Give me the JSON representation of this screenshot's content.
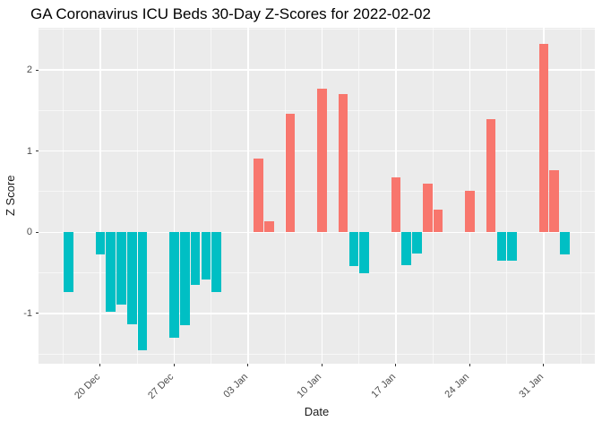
{
  "title": "GA Coronavirus ICU Beds 30-Day Z-Scores for 2022-02-02",
  "chart_data": {
    "type": "bar",
    "title": "GA Coronavirus ICU Beds 30-Day Z-Scores for 2022-02-02",
    "xlabel": "Date",
    "ylabel": "Z Score",
    "legend": "none",
    "grid": "major-and-minor",
    "panel_bg": "#EBEBEB",
    "grid_major_color": "#FFFFFF",
    "grid_minor_color": "rgba(255,255,255,0.6)",
    "tick_text_color": "#4d4d4d",
    "colors": {
      "positive": "#F8766D",
      "negative": "#00BFC4"
    },
    "x_range_days": [
      -2.85,
      49.84
    ],
    "y_range": [
      -1.62,
      2.52
    ],
    "bar_width_days": 0.9,
    "x_ticks": [
      {
        "label": "20 Dec",
        "day": 3
      },
      {
        "label": "27 Dec",
        "day": 10
      },
      {
        "label": "03 Jan",
        "day": 17
      },
      {
        "label": "10 Jan",
        "day": 24
      },
      {
        "label": "17 Jan",
        "day": 31
      },
      {
        "label": "24 Jan",
        "day": 38
      },
      {
        "label": "31 Jan",
        "day": 45
      }
    ],
    "x_minor_ticks_days": [
      -0.5,
      6.5,
      13.5,
      20.5,
      27.5,
      34.5,
      41.5,
      48.5
    ],
    "y_ticks": [
      {
        "label": "2",
        "z": 2
      },
      {
        "label": "1",
        "z": 1
      },
      {
        "label": "0",
        "z": 0
      },
      {
        "label": "-1",
        "z": -1
      }
    ],
    "y_minor_ticks": [
      2.5,
      1.5,
      0.5,
      -0.5,
      -1.5
    ],
    "points": [
      {
        "date": "17 Dec",
        "day": 0,
        "z": -0.74
      },
      {
        "date": "20 Dec",
        "day": 3,
        "z": -0.27
      },
      {
        "date": "21 Dec",
        "day": 4,
        "z": -0.98
      },
      {
        "date": "22 Dec",
        "day": 5,
        "z": -0.89
      },
      {
        "date": "23 Dec",
        "day": 6,
        "z": -1.13
      },
      {
        "date": "24 Dec",
        "day": 7,
        "z": -1.46
      },
      {
        "date": "27 Dec",
        "day": 10,
        "z": -1.3
      },
      {
        "date": "28 Dec",
        "day": 11,
        "z": -1.14
      },
      {
        "date": "29 Dec",
        "day": 12,
        "z": -0.65
      },
      {
        "date": "30 Dec",
        "day": 13,
        "z": -0.58
      },
      {
        "date": "31 Dec",
        "day": 14,
        "z": -0.74
      },
      {
        "date": "04 Jan",
        "day": 18,
        "z": 0.91
      },
      {
        "date": "05 Jan",
        "day": 19,
        "z": 0.13
      },
      {
        "date": "07 Jan",
        "day": 21,
        "z": 1.46
      },
      {
        "date": "10 Jan",
        "day": 24,
        "z": 1.77
      },
      {
        "date": "12 Jan",
        "day": 26,
        "z": 1.7
      },
      {
        "date": "13 Jan",
        "day": 27,
        "z": -0.42
      },
      {
        "date": "14 Jan",
        "day": 28,
        "z": -0.5
      },
      {
        "date": "17 Jan",
        "day": 31,
        "z": 0.68
      },
      {
        "date": "18 Jan",
        "day": 32,
        "z": -0.41
      },
      {
        "date": "19 Jan",
        "day": 33,
        "z": -0.26
      },
      {
        "date": "20 Jan",
        "day": 34,
        "z": 0.6
      },
      {
        "date": "21 Jan",
        "day": 35,
        "z": 0.28
      },
      {
        "date": "24 Jan",
        "day": 38,
        "z": 0.51
      },
      {
        "date": "26 Jan",
        "day": 40,
        "z": 1.39
      },
      {
        "date": "27 Jan",
        "day": 41,
        "z": -0.35
      },
      {
        "date": "28 Jan",
        "day": 42,
        "z": -0.35
      },
      {
        "date": "31 Jan",
        "day": 45,
        "z": 2.32
      },
      {
        "date": "01 Feb",
        "day": 46,
        "z": 0.76
      },
      {
        "date": "02 Feb",
        "day": 47,
        "z": -0.27
      }
    ]
  }
}
